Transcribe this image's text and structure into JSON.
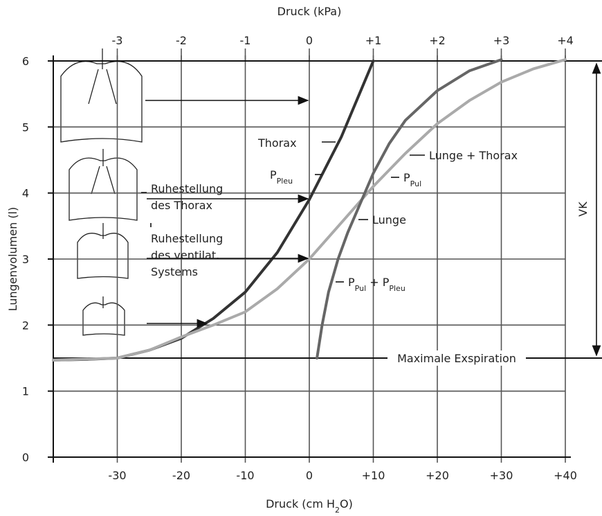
{
  "chart_data": {
    "type": "line",
    "x_title_parts": [
      {
        "text": "Druck (cm H"
      },
      {
        "text": "2",
        "sub": true
      },
      {
        "text": "O)"
      }
    ],
    "x2_title": "Druck (kPa)",
    "y_title": "Lungenvolumen (l)",
    "xlim": [
      -40,
      40
    ],
    "xticks": [
      -30,
      -20,
      -10,
      0,
      {
        "value": 10,
        "label": "+10"
      },
      {
        "value": 20,
        "label": "+20"
      },
      {
        "value": 30,
        "label": "+30"
      },
      {
        "value": 40,
        "label": "+40"
      }
    ],
    "x2lim": [
      -4,
      4
    ],
    "x2ticks": [
      -3,
      -2,
      -1,
      0,
      {
        "value": 1,
        "label": "+1"
      },
      {
        "value": 2,
        "label": "+2"
      },
      {
        "value": 3,
        "label": "+3"
      },
      {
        "value": 4,
        "label": "+4"
      }
    ],
    "ylim": [
      0,
      6
    ],
    "yticks": [
      0,
      1,
      2,
      3,
      4,
      5,
      6
    ],
    "grid": true,
    "series": [
      {
        "name": "Thorax",
        "color": "#333333",
        "x": [
          -40,
          -35,
          -30,
          -25,
          -20,
          -15,
          -10,
          -5,
          0,
          5,
          10
        ],
        "values": [
          1.47,
          1.48,
          1.5,
          1.62,
          1.8,
          2.1,
          2.5,
          3.1,
          3.9,
          4.85,
          6
        ]
      },
      {
        "name": "Lunge + Thorax",
        "color": "#aaaaaa",
        "x": [
          -40,
          -30,
          -25,
          -20,
          -15,
          -10,
          -5,
          0,
          5,
          10,
          15,
          20,
          25,
          30,
          35,
          40
        ],
        "values": [
          1.47,
          1.5,
          1.62,
          1.82,
          2.0,
          2.2,
          2.55,
          3.0,
          3.55,
          4.1,
          4.6,
          5.05,
          5.4,
          5.68,
          5.88,
          6.02
        ]
      },
      {
        "name": "Lunge",
        "color": "#666666",
        "x": [
          1.2,
          2,
          3,
          4.5,
          6,
          8,
          10,
          12.5,
          15,
          20,
          25,
          30
        ],
        "values": [
          1.5,
          2.0,
          2.5,
          3.0,
          3.4,
          3.85,
          4.3,
          4.75,
          5.1,
          5.55,
          5.85,
          6.02
        ]
      }
    ],
    "annotations": [
      {
        "parts": [
          {
            "text": "Thorax"
          }
        ]
      },
      {
        "parts": [
          {
            "text": "P"
          },
          {
            "text": "Pleu",
            "sub": true
          }
        ]
      },
      {
        "lines": [
          "Ruhestellung",
          "des Thorax"
        ]
      },
      {
        "lines": [
          "Ruhestellung",
          "des ventilat.",
          "Systems"
        ]
      },
      {
        "parts": [
          {
            "text": "Lunge + Thorax"
          }
        ]
      },
      {
        "parts": [
          {
            "text": "P"
          },
          {
            "text": "Pul",
            "sub": true
          }
        ]
      },
      {
        "parts": [
          {
            "text": "Lunge"
          }
        ]
      },
      {
        "parts": [
          {
            "text": "P"
          },
          {
            "text": "Pul",
            "sub": true
          },
          {
            "text": " + P"
          },
          {
            "text": "Pleu",
            "sub": true
          }
        ]
      },
      {
        "parts": [
          {
            "text": "Maximale Exspiration"
          }
        ]
      },
      {
        "parts": [
          {
            "text": "VK"
          }
        ]
      }
    ],
    "max_expiration": 1.5
  }
}
